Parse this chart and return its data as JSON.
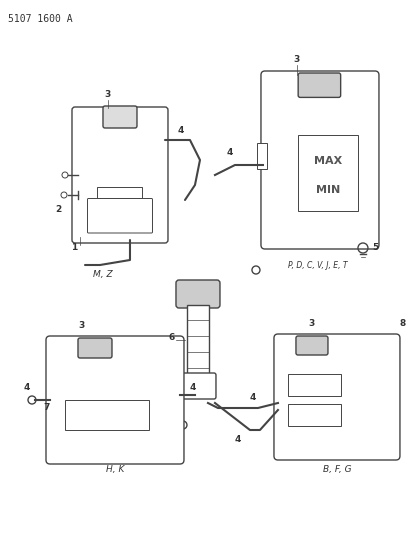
{
  "title": "5107 1600 A",
  "bg_color": "#ffffff",
  "line_color": "#444444",
  "text_color": "#333333",
  "label_color": "#222222",
  "labels": {
    "top_left_code": "M, Z",
    "top_right_code": "P, D, C, V, J, E, T",
    "bottom_left_code": "H, K",
    "bottom_right_code": "B, F, G"
  },
  "part_numbers": {
    "n1": "1",
    "n2": "2",
    "n3": "3",
    "n4": "4",
    "n5": "5",
    "n6": "6",
    "n7": "7",
    "n8": "8"
  }
}
